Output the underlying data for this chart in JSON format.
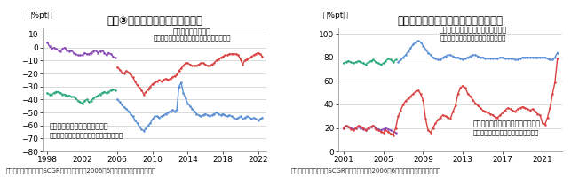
{
  "chart1": {
    "title_text": "図表③　家計の経済・雇用の見方",
    "ylabel": "（%pt）",
    "ylim": [
      -80,
      15
    ],
    "yticks": [
      10,
      0,
      -10,
      -20,
      -30,
      -40,
      -50,
      -60,
      -70,
      -80
    ],
    "xlim": [
      1997.5,
      2023
    ],
    "xticks": [
      1998,
      2002,
      2006,
      2010,
      2014,
      2018,
      2022
    ],
    "ann1_lines": [
      "雇用・処遇への不安",
      "（「あまり感じない」－「かなり感じる」）"
    ],
    "ann1_x": 2014.5,
    "ann1_y1": 9,
    "ann1_y2": 5,
    "ann2_lines": [
      "日本経済の成長力に対する見方",
      "（「より高い成長」－「より低い成長」）"
    ],
    "ann2_x": 1998.2,
    "ann2_y1": -64,
    "ann2_y2": -70,
    "footer": "（出所：日本銀行よりSCGR作成）　（注）2006年6月に調査方法が変更された",
    "series": [
      {
        "color": "#8B4CB8",
        "x": [
          1998.0,
          1998.25,
          1998.5,
          1998.75,
          1999.0,
          1999.25,
          1999.5,
          1999.75,
          2000.0,
          2000.25,
          2000.5,
          2000.75,
          2001.0,
          2001.25,
          2001.5,
          2001.75,
          2002.0,
          2002.25,
          2002.5,
          2002.75,
          2003.0,
          2003.25,
          2003.5,
          2003.75,
          2004.0,
          2004.25,
          2004.5,
          2004.75,
          2005.0,
          2005.25,
          2005.5,
          2005.75
        ],
        "y": [
          4,
          1,
          -1,
          0,
          -1,
          -2,
          -3,
          -1,
          0,
          -2,
          -3,
          -2,
          -4,
          -5,
          -6,
          -6,
          -6,
          -4,
          -5,
          -5,
          -4,
          -3,
          -2,
          -4,
          -3,
          -2,
          -4,
          -6,
          -4,
          -5,
          -7,
          -8
        ]
      },
      {
        "color": "#2aaa7a",
        "x": [
          1998.0,
          1998.25,
          1998.5,
          1998.75,
          1999.0,
          1999.25,
          1999.5,
          1999.75,
          2000.0,
          2000.25,
          2000.5,
          2000.75,
          2001.0,
          2001.25,
          2001.5,
          2001.75,
          2002.0,
          2002.25,
          2002.5,
          2002.75,
          2003.0,
          2003.25,
          2003.5,
          2003.75,
          2004.0,
          2004.25,
          2004.5,
          2004.75,
          2005.0,
          2005.25,
          2005.5,
          2005.75
        ],
        "y": [
          -35,
          -36,
          -36,
          -35,
          -34,
          -34,
          -35,
          -36,
          -36,
          -37,
          -37,
          -38,
          -38,
          -39,
          -41,
          -42,
          -43,
          -41,
          -40,
          -42,
          -41,
          -39,
          -38,
          -37,
          -36,
          -35,
          -34,
          -35,
          -34,
          -33,
          -32,
          -33
        ]
      },
      {
        "color": "#d94040",
        "x": [
          2006.0,
          2006.25,
          2006.5,
          2006.75,
          2007.0,
          2007.25,
          2007.5,
          2007.75,
          2008.0,
          2008.25,
          2008.5,
          2008.75,
          2009.0,
          2009.25,
          2009.5,
          2009.75,
          2010.0,
          2010.25,
          2010.5,
          2010.75,
          2011.0,
          2011.25,
          2011.5,
          2011.75,
          2012.0,
          2012.25,
          2012.5,
          2012.75,
          2013.0,
          2013.25,
          2013.5,
          2013.75,
          2014.0,
          2014.25,
          2014.5,
          2014.75,
          2015.0,
          2015.25,
          2015.5,
          2015.75,
          2016.0,
          2016.25,
          2016.5,
          2016.75,
          2017.0,
          2017.25,
          2017.5,
          2017.75,
          2018.0,
          2018.25,
          2018.5,
          2018.75,
          2019.0,
          2019.25,
          2019.5,
          2019.75,
          2020.0,
          2020.25,
          2020.5,
          2020.75,
          2021.0,
          2021.25,
          2021.5,
          2021.75,
          2022.0,
          2022.25,
          2022.5
        ],
        "y": [
          -15,
          -17,
          -19,
          -20,
          -18,
          -19,
          -21,
          -23,
          -26,
          -29,
          -31,
          -33,
          -36,
          -34,
          -32,
          -30,
          -28,
          -27,
          -26,
          -25,
          -26,
          -25,
          -24,
          -25,
          -24,
          -23,
          -22,
          -21,
          -18,
          -16,
          -14,
          -12,
          -12,
          -13,
          -14,
          -14,
          -14,
          -13,
          -12,
          -12,
          -13,
          -14,
          -14,
          -13,
          -12,
          -10,
          -9,
          -8,
          -7,
          -6,
          -6,
          -5,
          -5,
          -5,
          -5,
          -6,
          -9,
          -13,
          -10,
          -9,
          -8,
          -7,
          -6,
          -5,
          -4,
          -5,
          -7
        ]
      },
      {
        "color": "#5b8fd4",
        "x": [
          2006.0,
          2006.25,
          2006.5,
          2006.75,
          2007.0,
          2007.25,
          2007.5,
          2007.75,
          2008.0,
          2008.25,
          2008.5,
          2008.75,
          2009.0,
          2009.25,
          2009.5,
          2009.75,
          2010.0,
          2010.25,
          2010.5,
          2010.75,
          2011.0,
          2011.25,
          2011.5,
          2011.75,
          2012.0,
          2012.25,
          2012.5,
          2012.75,
          2013.0,
          2013.25,
          2013.5,
          2013.75,
          2014.0,
          2014.25,
          2014.5,
          2014.75,
          2015.0,
          2015.25,
          2015.5,
          2015.75,
          2016.0,
          2016.25,
          2016.5,
          2016.75,
          2017.0,
          2017.25,
          2017.5,
          2017.75,
          2018.0,
          2018.25,
          2018.5,
          2018.75,
          2019.0,
          2019.25,
          2019.5,
          2019.75,
          2020.0,
          2020.25,
          2020.5,
          2020.75,
          2021.0,
          2021.25,
          2021.5,
          2021.75,
          2022.0,
          2022.25,
          2022.5
        ],
        "y": [
          -40,
          -42,
          -44,
          -46,
          -47,
          -49,
          -51,
          -53,
          -56,
          -58,
          -61,
          -63,
          -64,
          -62,
          -60,
          -58,
          -55,
          -53,
          -53,
          -54,
          -53,
          -52,
          -51,
          -50,
          -49,
          -48,
          -49,
          -48,
          -30,
          -27,
          -35,
          -39,
          -43,
          -45,
          -47,
          -49,
          -51,
          -52,
          -53,
          -52,
          -51,
          -52,
          -53,
          -52,
          -51,
          -50,
          -51,
          -52,
          -51,
          -52,
          -53,
          -52,
          -53,
          -54,
          -55,
          -54,
          -53,
          -55,
          -54,
          -53,
          -54,
          -55,
          -54,
          -55,
          -56,
          -55,
          -54
        ]
      }
    ]
  },
  "chart2": {
    "title_text": "図表⑬　家計の物価上昇の受け止め方",
    "ylabel": "（%pt）",
    "ylim": [
      0,
      105
    ],
    "yticks": [
      0,
      20,
      40,
      60,
      80,
      100
    ],
    "xlim": [
      2000.5,
      2023
    ],
    "xticks": [
      2001,
      2005,
      2009,
      2013,
      2017,
      2021
    ],
    "ann1_lines": [
      "物価が上昇したと回答した人のうち",
      "「どちらかと言えば、困ったことだ」"
    ],
    "ann1_x": 2014.0,
    "ann1_y1": 100,
    "ann1_y2": 94,
    "ann2_lines": [
      "物価が下落したと回答した人のうち",
      "「どちらかと言えば、困ったことだ」"
    ],
    "ann2_x": 2014.0,
    "ann2_y1": 20,
    "ann2_y2": 14,
    "footer": "（出所：日本銀行よりSCGR作成）　（注）2006年6月に調査方法が変更された",
    "series": [
      {
        "color": "#5b8fd4",
        "x": [
          2006.5,
          2006.75,
          2007.0,
          2007.25,
          2007.5,
          2007.75,
          2008.0,
          2008.25,
          2008.5,
          2008.75,
          2009.0,
          2009.25,
          2009.5,
          2009.75,
          2010.0,
          2010.25,
          2010.5,
          2010.75,
          2011.0,
          2011.25,
          2011.5,
          2011.75,
          2012.0,
          2012.25,
          2012.5,
          2012.75,
          2013.0,
          2013.25,
          2013.5,
          2013.75,
          2014.0,
          2014.25,
          2014.5,
          2014.75,
          2015.0,
          2015.25,
          2015.5,
          2015.75,
          2016.0,
          2016.25,
          2016.5,
          2016.75,
          2017.0,
          2017.25,
          2017.5,
          2017.75,
          2018.0,
          2018.25,
          2018.5,
          2018.75,
          2019.0,
          2019.25,
          2019.5,
          2019.75,
          2020.0,
          2020.25,
          2020.5,
          2020.75,
          2021.0,
          2021.25,
          2021.5,
          2021.75,
          2022.0,
          2022.25,
          2022.5
        ],
        "y": [
          76,
          78,
          80,
          82,
          85,
          88,
          91,
          93,
          94,
          93,
          90,
          87,
          84,
          82,
          80,
          79,
          78,
          78,
          80,
          81,
          82,
          82,
          81,
          80,
          80,
          79,
          78,
          79,
          80,
          81,
          82,
          82,
          81,
          80,
          80,
          79,
          79,
          79,
          79,
          79,
          79,
          80,
          80,
          79,
          79,
          79,
          79,
          78,
          78,
          79,
          80,
          80,
          80,
          80,
          80,
          80,
          80,
          80,
          80,
          80,
          79,
          78,
          78,
          80,
          84
        ]
      },
      {
        "color": "#2aaa7a",
        "x": [
          2001.0,
          2001.25,
          2001.5,
          2001.75,
          2002.0,
          2002.25,
          2002.5,
          2002.75,
          2003.0,
          2003.25,
          2003.5,
          2003.75,
          2004.0,
          2004.25,
          2004.5,
          2004.75,
          2005.0,
          2005.25,
          2005.5,
          2005.75,
          2006.0,
          2006.25
        ],
        "y": [
          75,
          76,
          77,
          76,
          75,
          76,
          77,
          76,
          75,
          74,
          76,
          77,
          78,
          76,
          75,
          74,
          75,
          77,
          79,
          78,
          76,
          78
        ]
      },
      {
        "color": "#8B4CB8",
        "x": [
          2001.0,
          2001.25,
          2001.5,
          2001.75,
          2002.0,
          2002.25,
          2002.5,
          2002.75,
          2003.0,
          2003.25,
          2003.5,
          2003.75,
          2004.0,
          2004.25,
          2004.5,
          2004.75,
          2005.0,
          2005.25,
          2005.5,
          2005.75,
          2006.0,
          2006.25
        ],
        "y": [
          20,
          22,
          21,
          20,
          19,
          20,
          21,
          20,
          19,
          18,
          20,
          21,
          22,
          20,
          19,
          18,
          19,
          20,
          19,
          18,
          17,
          16
        ]
      },
      {
        "color": "#d94040",
        "x": [
          2001.0,
          2001.25,
          2001.5,
          2001.75,
          2002.0,
          2002.25,
          2002.5,
          2002.75,
          2003.0,
          2003.25,
          2003.5,
          2003.75,
          2004.0,
          2004.25,
          2004.5,
          2004.75,
          2005.0,
          2005.25,
          2005.5,
          2005.75,
          2006.0,
          2006.25,
          2006.5,
          2006.75,
          2007.0,
          2007.25,
          2007.5,
          2007.75,
          2008.0,
          2008.25,
          2008.5,
          2008.75,
          2009.0,
          2009.25,
          2009.5,
          2009.75,
          2010.0,
          2010.25,
          2010.5,
          2010.75,
          2011.0,
          2011.25,
          2011.5,
          2011.75,
          2012.0,
          2012.25,
          2012.5,
          2012.75,
          2013.0,
          2013.25,
          2013.5,
          2013.75,
          2014.0,
          2014.25,
          2014.5,
          2014.75,
          2015.0,
          2015.25,
          2015.5,
          2015.75,
          2016.0,
          2016.25,
          2016.5,
          2016.75,
          2017.0,
          2017.25,
          2017.5,
          2017.75,
          2018.0,
          2018.25,
          2018.5,
          2018.75,
          2019.0,
          2019.25,
          2019.5,
          2019.75,
          2020.0,
          2020.25,
          2020.5,
          2020.75,
          2021.0,
          2021.25,
          2021.5,
          2021.75,
          2022.0,
          2022.25,
          2022.5
        ],
        "y": [
          20,
          22,
          21,
          19,
          18,
          20,
          22,
          21,
          20,
          18,
          20,
          21,
          22,
          19,
          18,
          17,
          16,
          18,
          17,
          15,
          14,
          20,
          30,
          35,
          40,
          43,
          45,
          47,
          49,
          51,
          52,
          49,
          44,
          28,
          18,
          16,
          20,
          24,
          27,
          29,
          31,
          30,
          29,
          28,
          34,
          39,
          49,
          54,
          56,
          54,
          49,
          47,
          44,
          41,
          39,
          37,
          35,
          34,
          33,
          32,
          31,
          29,
          29,
          31,
          33,
          35,
          37,
          36,
          35,
          34,
          36,
          37,
          38,
          37,
          36,
          35,
          36,
          34,
          32,
          31,
          24,
          23,
          29,
          37,
          49,
          59,
          79
        ]
      }
    ]
  },
  "bg_color": "#ffffff",
  "grid_color": "#cccccc",
  "text_color": "#000000",
  "title_fontsize": 8.5,
  "label_fontsize": 6.5,
  "tick_fontsize": 6.5,
  "footer_fontsize": 5.0,
  "ann_fontsize": 5.8,
  "marker_size": 1.8,
  "line_width": 1.0
}
